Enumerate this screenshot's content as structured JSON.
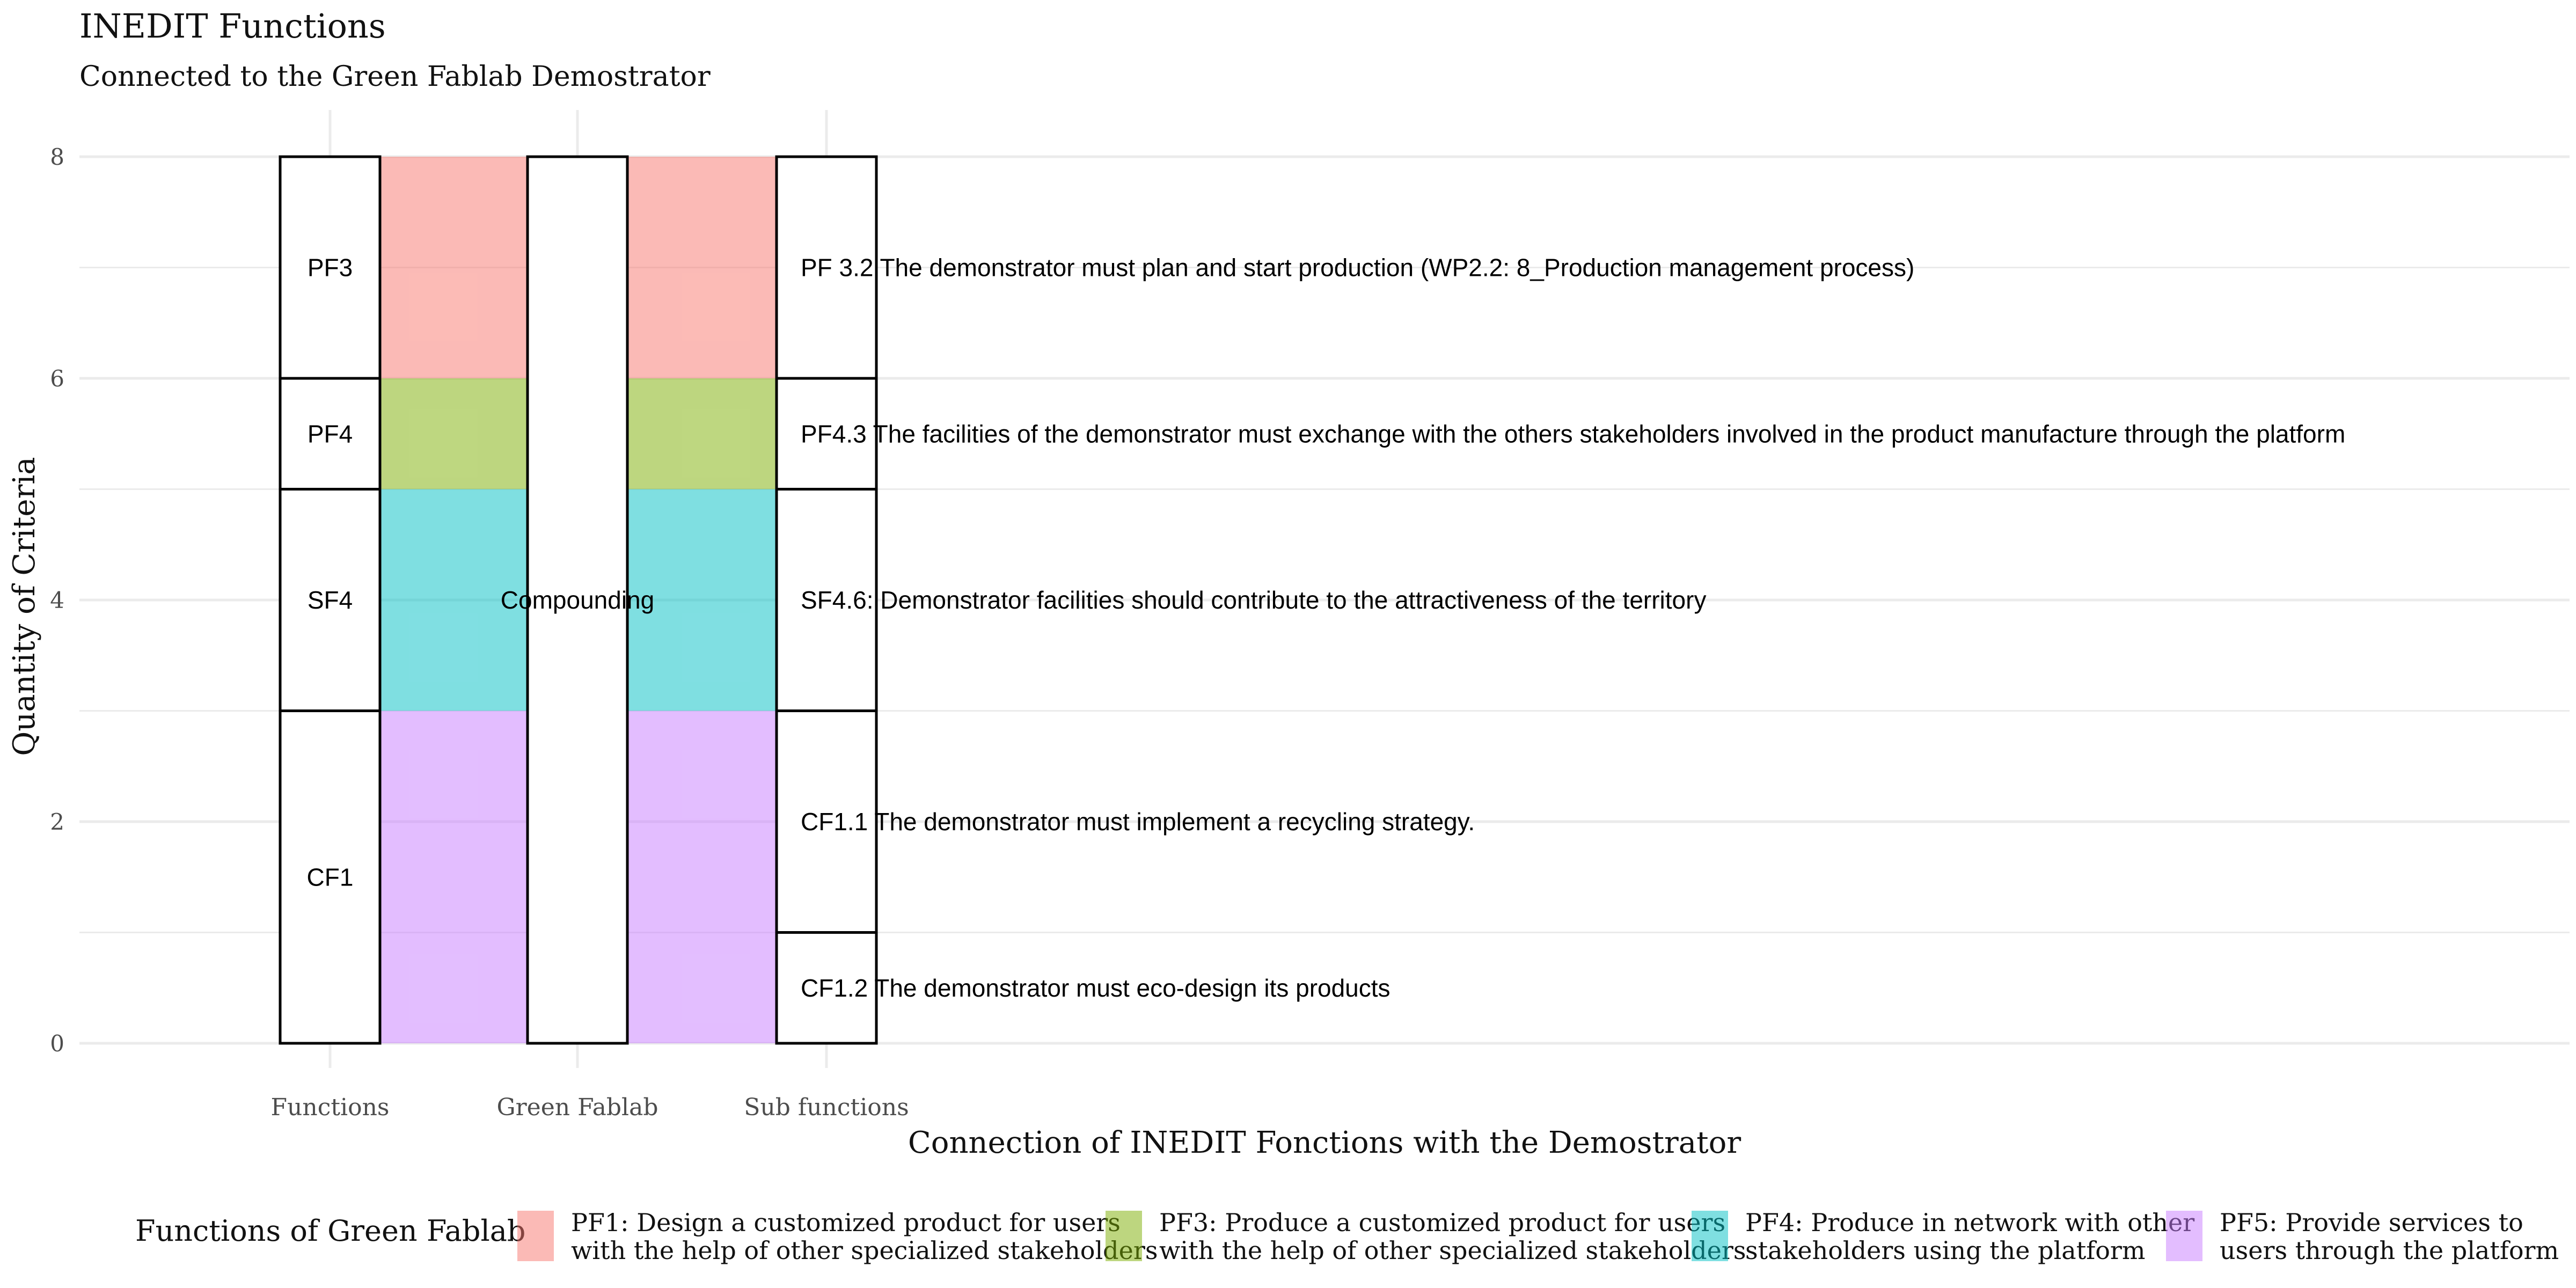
{
  "chart_data": {
    "type": "alluvial",
    "title": "INEDIT Functions",
    "subtitle": "Connected to the Green Fablab Demostrator",
    "xlabel": "Connection of INEDIT Fonctions with the Demostrator",
    "ylabel": "Quantity of Criteria",
    "ylim": [
      0,
      8
    ],
    "y_ticks": [
      0,
      2,
      4,
      6,
      8
    ],
    "grid": true,
    "axes": [
      "Functions",
      "Green Fablab",
      "Sub functions"
    ],
    "strata": {
      "Functions": [
        {
          "label": "PF3",
          "from": 6,
          "to": 8
        },
        {
          "label": "PF4",
          "from": 5,
          "to": 6
        },
        {
          "label": "SF4",
          "from": 3,
          "to": 5
        },
        {
          "label": "CF1",
          "from": 0,
          "to": 3
        }
      ],
      "Green Fablab": [
        {
          "label": "Compounding",
          "from": 0,
          "to": 8
        }
      ],
      "Sub functions": [
        {
          "label": "PF 3.2 The demonstrator must plan and start production (WP2.2: 8_Production management process)",
          "from": 6,
          "to": 8
        },
        {
          "label": "PF4.3 The facilities of the demonstrator must exchange with the others stakeholders involved in the product manufacture through the platform",
          "from": 5,
          "to": 6
        },
        {
          "label": "SF4.6: Demonstrator facilities should contribute to the attractiveness of the territory",
          "from": 3,
          "to": 5
        },
        {
          "label": "CF1.1 The demonstrator must implement a recycling strategy.",
          "from": 1,
          "to": 3
        },
        {
          "label": "CF1.2 The demonstrator must eco-design its products",
          "from": 0,
          "to": 1
        }
      ]
    },
    "flows": [
      {
        "group": "PF1",
        "from": 6,
        "to": 8
      },
      {
        "group": "PF3",
        "from": 5,
        "to": 6
      },
      {
        "group": "PF4",
        "from": 3,
        "to": 5
      },
      {
        "group": "PF5",
        "from": 0,
        "to": 3
      }
    ],
    "legend": {
      "title": "Functions of Green Fablab",
      "position": "bottom",
      "entries": [
        {
          "key": "PF1",
          "line1": "PF1: Design a customized product for users",
          "line2": "with the help of other specialized stakeholders",
          "color": "#F8766D"
        },
        {
          "key": "PF3",
          "line1": "PF3: Produce a customized product for users",
          "line2": "with the help of other specialized stakeholders",
          "color": "#7CAE00"
        },
        {
          "key": "PF4",
          "line1": "PF4: Produce in network with other",
          "line2": "stakeholders using the platform",
          "color": "#00BFC4"
        },
        {
          "key": "PF5",
          "line1": "PF5: Provide services to",
          "line2": "users through the platform",
          "color": "#C77CFF"
        }
      ]
    },
    "flow_opacity": 0.5
  }
}
